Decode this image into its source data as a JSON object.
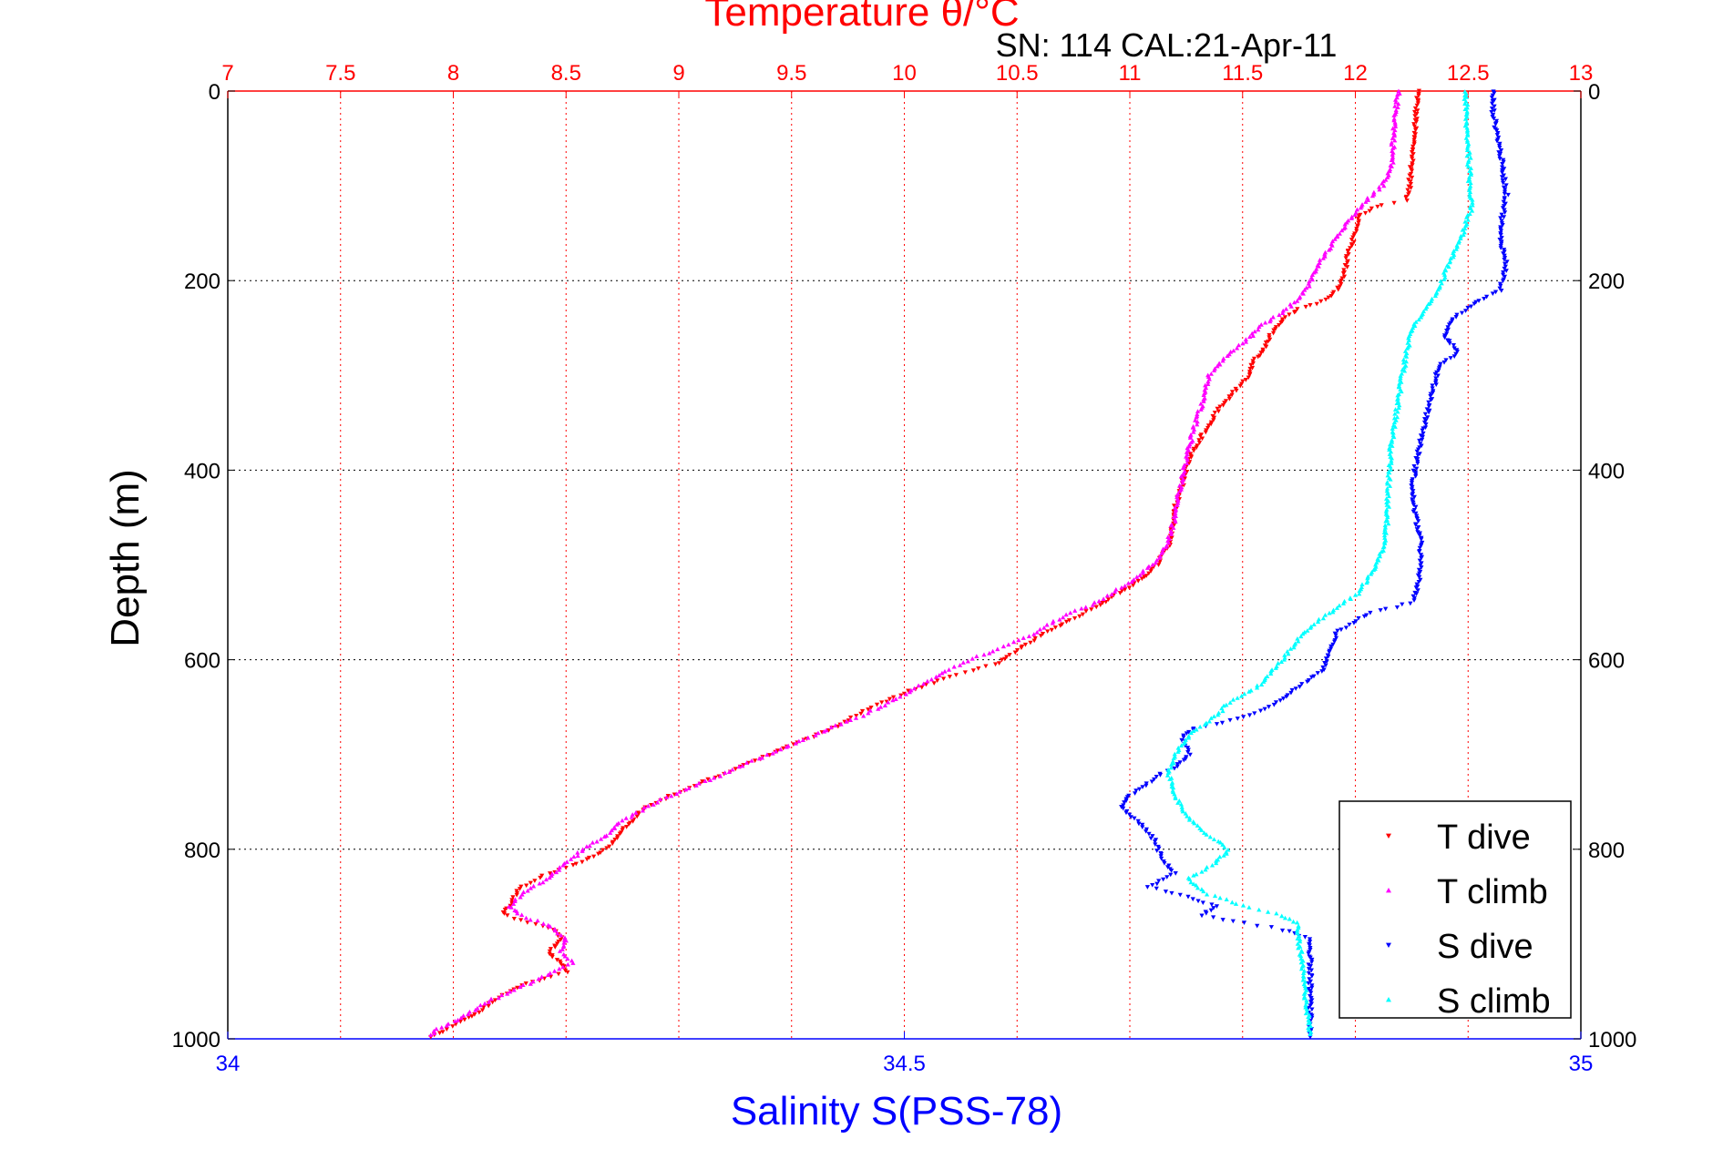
{
  "chart_data": {
    "type": "scatter",
    "title": "Temperature θ/°C",
    "subtitle": "SN: 114  CAL:21-Apr-11",
    "ylabel": "Depth (m)",
    "top_axis": {
      "range": [
        7,
        13
      ],
      "ticks": [
        "7",
        "7.5",
        "8",
        "8.5",
        "9",
        "9.5",
        "10",
        "10.5",
        "11",
        "11.5",
        "12",
        "12.5",
        "13"
      ],
      "color": "#ff0000"
    },
    "bottom_axis": {
      "label": "Salinity S(PSS-78)",
      "range": [
        34,
        35
      ],
      "ticks": [
        "34",
        "34.5",
        "35"
      ],
      "color": "#0000ff"
    },
    "depth_axis": {
      "range": [
        0,
        1000
      ],
      "reversed": true,
      "ticks": [
        "0",
        "200",
        "400",
        "600",
        "800",
        "1000"
      ]
    },
    "grid": true,
    "legend_placement": "bottom-right",
    "series": [
      {
        "name": "T dive",
        "axis": "temperature",
        "color": "#ff0000",
        "marker": "triangle-down",
        "points": [
          [
            12.28,
            0
          ],
          [
            12.27,
            20
          ],
          [
            12.26,
            50
          ],
          [
            12.25,
            80
          ],
          [
            12.24,
            100
          ],
          [
            12.23,
            115
          ],
          [
            12.12,
            120
          ],
          [
            12.02,
            130
          ],
          [
            12.0,
            150
          ],
          [
            11.97,
            170
          ],
          [
            11.95,
            195
          ],
          [
            11.92,
            210
          ],
          [
            11.87,
            220
          ],
          [
            11.75,
            230
          ],
          [
            11.68,
            240
          ],
          [
            11.63,
            255
          ],
          [
            11.6,
            270
          ],
          [
            11.55,
            285
          ],
          [
            11.53,
            300
          ],
          [
            11.45,
            320
          ],
          [
            11.38,
            340
          ],
          [
            11.33,
            360
          ],
          [
            11.28,
            380
          ],
          [
            11.25,
            400
          ],
          [
            11.23,
            420
          ],
          [
            11.2,
            440
          ],
          [
            11.19,
            460
          ],
          [
            11.17,
            480
          ],
          [
            11.12,
            500
          ],
          [
            11.05,
            515
          ],
          [
            10.95,
            530
          ],
          [
            10.85,
            545
          ],
          [
            10.72,
            560
          ],
          [
            10.6,
            575
          ],
          [
            10.5,
            590
          ],
          [
            10.4,
            605
          ],
          [
            10.2,
            618
          ],
          [
            10.0,
            635
          ],
          [
            9.85,
            650
          ],
          [
            9.7,
            670
          ],
          [
            9.55,
            685
          ],
          [
            9.4,
            700
          ],
          [
            9.2,
            720
          ],
          [
            9.0,
            740
          ],
          [
            8.85,
            755
          ],
          [
            8.8,
            770
          ],
          [
            8.75,
            780
          ],
          [
            8.72,
            790
          ],
          [
            8.65,
            805
          ],
          [
            8.55,
            815
          ],
          [
            8.4,
            828
          ],
          [
            8.3,
            840
          ],
          [
            8.25,
            860
          ],
          [
            8.22,
            868
          ],
          [
            8.3,
            875
          ],
          [
            8.45,
            885
          ],
          [
            8.48,
            895
          ],
          [
            8.42,
            910
          ],
          [
            8.48,
            920
          ],
          [
            8.5,
            930
          ],
          [
            8.35,
            940
          ],
          [
            8.25,
            950
          ],
          [
            8.15,
            965
          ],
          [
            8.05,
            980
          ],
          [
            7.95,
            992
          ],
          [
            7.9,
            998
          ]
        ]
      },
      {
        "name": "T climb",
        "axis": "temperature",
        "color": "#ff00ff",
        "marker": "triangle-up",
        "points": [
          [
            12.19,
            0
          ],
          [
            12.18,
            20
          ],
          [
            12.17,
            50
          ],
          [
            12.16,
            80
          ],
          [
            12.12,
            100
          ],
          [
            12.05,
            115
          ],
          [
            12.0,
            130
          ],
          [
            11.93,
            150
          ],
          [
            11.87,
            170
          ],
          [
            11.82,
            190
          ],
          [
            11.78,
            210
          ],
          [
            11.7,
            230
          ],
          [
            11.6,
            245
          ],
          [
            11.53,
            260
          ],
          [
            11.43,
            280
          ],
          [
            11.35,
            300
          ],
          [
            11.32,
            330
          ],
          [
            11.28,
            360
          ],
          [
            11.25,
            390
          ],
          [
            11.22,
            420
          ],
          [
            11.2,
            450
          ],
          [
            11.17,
            475
          ],
          [
            11.12,
            495
          ],
          [
            11.02,
            515
          ],
          [
            10.85,
            540
          ],
          [
            10.7,
            555
          ],
          [
            10.55,
            575
          ],
          [
            10.35,
            595
          ],
          [
            10.2,
            610
          ],
          [
            10.05,
            630
          ],
          [
            9.9,
            650
          ],
          [
            9.7,
            670
          ],
          [
            9.6,
            680
          ],
          [
            9.45,
            695
          ],
          [
            9.35,
            705
          ],
          [
            9.2,
            720
          ],
          [
            9.05,
            735
          ],
          [
            8.9,
            750
          ],
          [
            8.75,
            770
          ],
          [
            8.68,
            785
          ],
          [
            8.58,
            800
          ],
          [
            8.5,
            815
          ],
          [
            8.42,
            830
          ],
          [
            8.3,
            848
          ],
          [
            8.25,
            860
          ],
          [
            8.3,
            870
          ],
          [
            8.42,
            880
          ],
          [
            8.5,
            895
          ],
          [
            8.48,
            908
          ],
          [
            8.53,
            920
          ],
          [
            8.4,
            935
          ],
          [
            8.25,
            950
          ],
          [
            8.12,
            965
          ],
          [
            8.02,
            980
          ],
          [
            7.93,
            990
          ],
          [
            7.9,
            996
          ]
        ]
      },
      {
        "name": "S dive",
        "axis": "salinity",
        "color": "#0000ff",
        "marker": "triangle-down",
        "points": [
          [
            34.935,
            0
          ],
          [
            34.935,
            20
          ],
          [
            34.94,
            60
          ],
          [
            34.945,
            110
          ],
          [
            34.94,
            150
          ],
          [
            34.945,
            185
          ],
          [
            34.94,
            210
          ],
          [
            34.92,
            225
          ],
          [
            34.905,
            240
          ],
          [
            34.9,
            260
          ],
          [
            34.91,
            275
          ],
          [
            34.895,
            290
          ],
          [
            34.89,
            320
          ],
          [
            34.885,
            350
          ],
          [
            34.88,
            380
          ],
          [
            34.875,
            420
          ],
          [
            34.878,
            450
          ],
          [
            34.882,
            480
          ],
          [
            34.88,
            520
          ],
          [
            34.875,
            540
          ],
          [
            34.845,
            550
          ],
          [
            34.82,
            570
          ],
          [
            34.815,
            590
          ],
          [
            34.81,
            610
          ],
          [
            34.79,
            630
          ],
          [
            34.77,
            650
          ],
          [
            34.75,
            660
          ],
          [
            34.73,
            668
          ],
          [
            34.715,
            672
          ],
          [
            34.705,
            680
          ],
          [
            34.71,
            700
          ],
          [
            34.7,
            715
          ],
          [
            34.69,
            720
          ],
          [
            34.68,
            730
          ],
          [
            34.665,
            745
          ],
          [
            34.66,
            755
          ],
          [
            34.672,
            770
          ],
          [
            34.685,
            790
          ],
          [
            34.69,
            810
          ],
          [
            34.7,
            825
          ],
          [
            34.68,
            840
          ],
          [
            34.71,
            850
          ],
          [
            34.73,
            860
          ],
          [
            34.72,
            870
          ],
          [
            34.75,
            878
          ],
          [
            34.78,
            885
          ],
          [
            34.8,
            895
          ],
          [
            34.8,
            998
          ]
        ]
      },
      {
        "name": "S climb",
        "axis": "salinity",
        "color": "#00ffff",
        "marker": "triangle-up",
        "points": [
          [
            34.915,
            0
          ],
          [
            34.915,
            30
          ],
          [
            34.917,
            60
          ],
          [
            34.918,
            100
          ],
          [
            34.92,
            120
          ],
          [
            34.915,
            140
          ],
          [
            34.91,
            160
          ],
          [
            34.9,
            190
          ],
          [
            34.895,
            210
          ],
          [
            34.885,
            230
          ],
          [
            34.875,
            250
          ],
          [
            34.872,
            270
          ],
          [
            34.868,
            300
          ],
          [
            34.865,
            330
          ],
          [
            34.86,
            370
          ],
          [
            34.858,
            410
          ],
          [
            34.857,
            450
          ],
          [
            34.855,
            480
          ],
          [
            34.845,
            510
          ],
          [
            34.835,
            530
          ],
          [
            34.82,
            545
          ],
          [
            34.805,
            560
          ],
          [
            34.79,
            580
          ],
          [
            34.78,
            600
          ],
          [
            34.77,
            615
          ],
          [
            34.76,
            630
          ],
          [
            34.74,
            645
          ],
          [
            34.73,
            660
          ],
          [
            34.71,
            680
          ],
          [
            34.7,
            700
          ],
          [
            34.695,
            720
          ],
          [
            34.7,
            740
          ],
          [
            34.705,
            760
          ],
          [
            34.72,
            780
          ],
          [
            34.74,
            800
          ],
          [
            34.73,
            815
          ],
          [
            34.71,
            830
          ],
          [
            34.72,
            845
          ],
          [
            34.75,
            860
          ],
          [
            34.78,
            870
          ],
          [
            34.79,
            878
          ],
          [
            34.8,
            995
          ]
        ]
      }
    ]
  }
}
